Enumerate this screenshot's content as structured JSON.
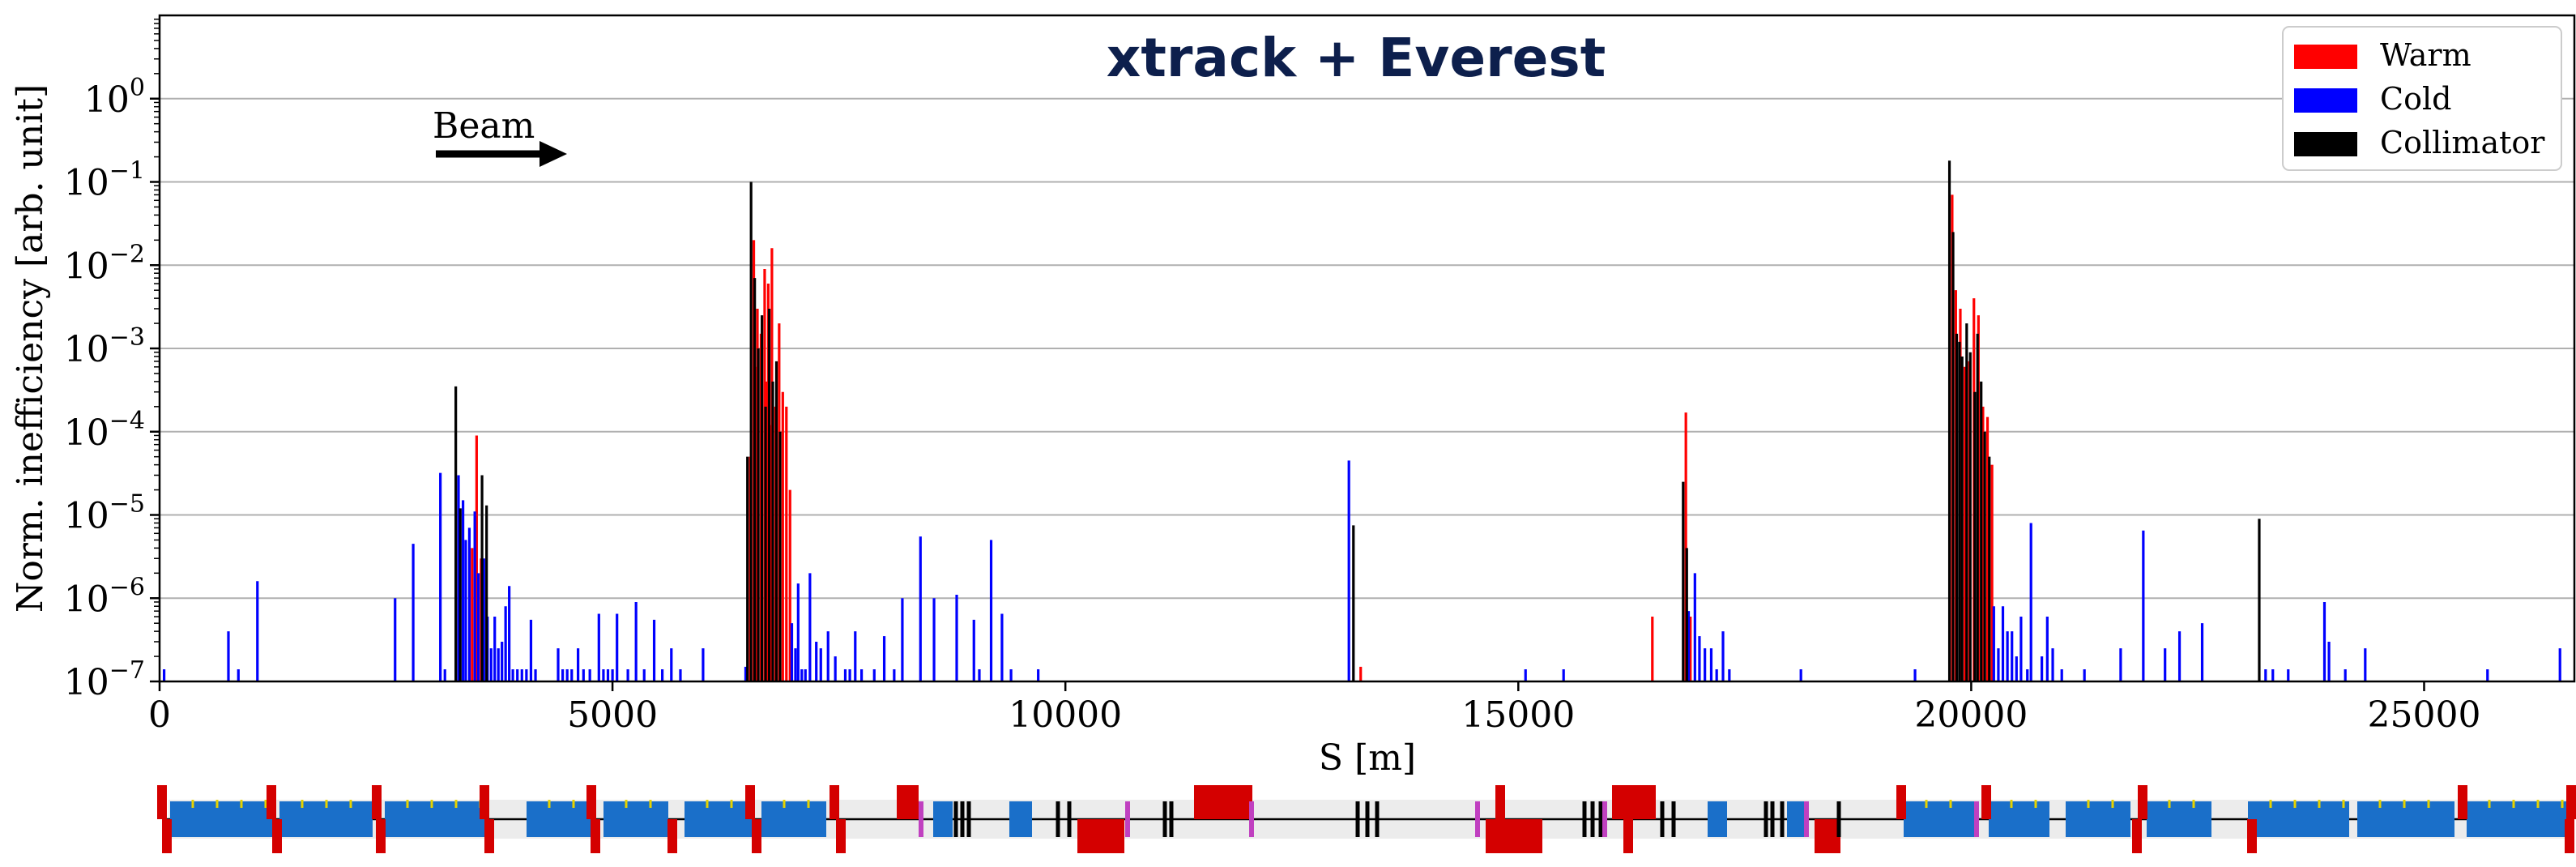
{
  "chart_data": {
    "type": "bar",
    "title": "xtrack + Everest",
    "xlabel": "S [m]",
    "ylabel": "Norm. inefficiency [arb. unit]",
    "xlim": [
      0,
      26659
    ],
    "ylim": [
      1e-07,
      10
    ],
    "yscale": "log",
    "grid": "y-major",
    "legend_position": "top-right",
    "x_ticks": [
      0,
      5000,
      10000,
      15000,
      20000,
      25000
    ],
    "x_tick_labels": [
      "0",
      "5000",
      "10000",
      "15000",
      "20000",
      "25000"
    ],
    "y_ticks": [
      {
        "value": 1,
        "base": "10",
        "exp": "0"
      },
      {
        "value": 0.1,
        "base": "10",
        "exp": "−1"
      },
      {
        "value": 0.01,
        "base": "10",
        "exp": "−2"
      },
      {
        "value": 0.001,
        "base": "10",
        "exp": "−3"
      },
      {
        "value": 0.0001,
        "base": "10",
        "exp": "−4"
      },
      {
        "value": 1e-05,
        "base": "10",
        "exp": "−5"
      },
      {
        "value": 1e-06,
        "base": "10",
        "exp": "−6"
      },
      {
        "value": 1e-07,
        "base": "10",
        "exp": "−7"
      }
    ],
    "annotation": {
      "text": "Beam",
      "direction": "right"
    },
    "series": [
      {
        "name": "Warm",
        "color": "#ff0000",
        "points": [
          [
            3500,
            9e-05
          ],
          [
            3450,
            4e-06
          ],
          [
            3550,
            3e-06
          ],
          [
            6520,
            5e-05
          ],
          [
            6560,
            0.02
          ],
          [
            6600,
            0.003
          ],
          [
            6640,
            0.0015
          ],
          [
            6680,
            0.009
          ],
          [
            6720,
            0.006
          ],
          [
            6760,
            0.016
          ],
          [
            6800,
            0.0002
          ],
          [
            6840,
            0.002
          ],
          [
            6880,
            0.0003
          ],
          [
            6920,
            0.0002
          ],
          [
            6960,
            2e-05
          ],
          [
            6580,
            0.0006
          ],
          [
            6700,
            0.0004
          ],
          [
            6740,
            0.00012
          ],
          [
            13260,
            1.5e-07
          ],
          [
            16480,
            6e-07
          ],
          [
            16850,
            0.00017
          ],
          [
            16900,
            6e-07
          ],
          [
            19790,
            0.07
          ],
          [
            19830,
            0.005
          ],
          [
            19880,
            0.003
          ],
          [
            19930,
            0.0006
          ],
          [
            19980,
            0.0007
          ],
          [
            20030,
            0.004
          ],
          [
            20080,
            0.0025
          ],
          [
            20130,
            0.0002
          ],
          [
            20180,
            0.00015
          ],
          [
            20230,
            4e-05
          ]
        ]
      },
      {
        "name": "Cold",
        "color": "#0000ff",
        "points": [
          [
            50,
            1.4e-07
          ],
          [
            760,
            4e-07
          ],
          [
            870,
            1.4e-07
          ],
          [
            1080,
            1.6e-06
          ],
          [
            2600,
            1e-06
          ],
          [
            2800,
            4.5e-06
          ],
          [
            3100,
            3.2e-05
          ],
          [
            3150,
            1.4e-07
          ],
          [
            3300,
            3e-05
          ],
          [
            3350,
            1.5e-05
          ],
          [
            3380,
            5e-06
          ],
          [
            3420,
            7e-06
          ],
          [
            3480,
            1.1e-05
          ],
          [
            3520,
            2e-06
          ],
          [
            3580,
            3e-06
          ],
          [
            3620,
            6e-07
          ],
          [
            3660,
            2.5e-07
          ],
          [
            3700,
            6e-07
          ],
          [
            3740,
            2.5e-07
          ],
          [
            3780,
            3e-07
          ],
          [
            3820,
            8e-07
          ],
          [
            3860,
            1.4e-06
          ],
          [
            3900,
            1.4e-07
          ],
          [
            3950,
            1.4e-07
          ],
          [
            4000,
            1.4e-07
          ],
          [
            4050,
            1.4e-07
          ],
          [
            4100,
            5.5e-07
          ],
          [
            4150,
            1.4e-07
          ],
          [
            4400,
            2.5e-07
          ],
          [
            4450,
            1.4e-07
          ],
          [
            4500,
            1.4e-07
          ],
          [
            4550,
            1.4e-07
          ],
          [
            4620,
            2.5e-07
          ],
          [
            4680,
            1.4e-07
          ],
          [
            4750,
            1.4e-07
          ],
          [
            4850,
            6.5e-07
          ],
          [
            4900,
            1.4e-07
          ],
          [
            4950,
            1.4e-07
          ],
          [
            5000,
            1.4e-07
          ],
          [
            5050,
            6.5e-07
          ],
          [
            5170,
            1.4e-07
          ],
          [
            5260,
            9e-07
          ],
          [
            5350,
            1.4e-07
          ],
          [
            5460,
            5.5e-07
          ],
          [
            5550,
            1.4e-07
          ],
          [
            5650,
            2.5e-07
          ],
          [
            5750,
            1.4e-07
          ],
          [
            6000,
            2.5e-07
          ],
          [
            6470,
            1.5e-07
          ],
          [
            6980,
            5e-07
          ],
          [
            7020,
            2.5e-07
          ],
          [
            7050,
            1.5e-06
          ],
          [
            7090,
            1.4e-07
          ],
          [
            7130,
            1.4e-07
          ],
          [
            7180,
            2e-06
          ],
          [
            7250,
            3e-07
          ],
          [
            7300,
            2.5e-07
          ],
          [
            7380,
            4e-07
          ],
          [
            7460,
            2e-07
          ],
          [
            7570,
            1.4e-07
          ],
          [
            7620,
            1.4e-07
          ],
          [
            7680,
            4e-07
          ],
          [
            7750,
            1.4e-07
          ],
          [
            7890,
            1.4e-07
          ],
          [
            8000,
            3.5e-07
          ],
          [
            8110,
            1.4e-07
          ],
          [
            8200,
            1e-06
          ],
          [
            8400,
            5.5e-06
          ],
          [
            8550,
            1e-06
          ],
          [
            8800,
            1.1e-06
          ],
          [
            8990,
            5.5e-07
          ],
          [
            9050,
            1.4e-07
          ],
          [
            9180,
            5e-06
          ],
          [
            9300,
            6.5e-07
          ],
          [
            9400,
            1.4e-07
          ],
          [
            9700,
            1.4e-07
          ],
          [
            13130,
            4.5e-05
          ],
          [
            15080,
            1.4e-07
          ],
          [
            15500,
            1.4e-07
          ],
          [
            16880,
            7e-07
          ],
          [
            16950,
            2e-06
          ],
          [
            17000,
            3.5e-07
          ],
          [
            17060,
            2.5e-07
          ],
          [
            17130,
            2.5e-07
          ],
          [
            17190,
            1.4e-07
          ],
          [
            17260,
            4e-07
          ],
          [
            17330,
            1.4e-07
          ],
          [
            18120,
            1.4e-07
          ],
          [
            19380,
            1.4e-07
          ],
          [
            20250,
            8e-07
          ],
          [
            20300,
            2.5e-07
          ],
          [
            20350,
            8e-07
          ],
          [
            20400,
            4e-07
          ],
          [
            20450,
            4e-07
          ],
          [
            20500,
            2e-07
          ],
          [
            20550,
            6e-07
          ],
          [
            20620,
            1.4e-07
          ],
          [
            20660,
            8e-06
          ],
          [
            20780,
            2e-07
          ],
          [
            20840,
            6e-07
          ],
          [
            20900,
            2.5e-07
          ],
          [
            21000,
            1.4e-07
          ],
          [
            21250,
            1.4e-07
          ],
          [
            21650,
            2.5e-07
          ],
          [
            21900,
            6.5e-06
          ],
          [
            22140,
            2.5e-07
          ],
          [
            22300,
            4e-07
          ],
          [
            22550,
            5e-07
          ],
          [
            23250,
            1.4e-07
          ],
          [
            23330,
            1.4e-07
          ],
          [
            23500,
            1.4e-07
          ],
          [
            23900,
            9e-07
          ],
          [
            23950,
            3e-07
          ],
          [
            24130,
            1.4e-07
          ],
          [
            24350,
            2.5e-07
          ],
          [
            25700,
            1.4e-07
          ],
          [
            26500,
            2.5e-07
          ]
        ]
      },
      {
        "name": "Collimator",
        "color": "#000000",
        "points": [
          [
            3270,
            0.00035
          ],
          [
            3320,
            1.2e-05
          ],
          [
            3560,
            3e-05
          ],
          [
            3610,
            1.3e-05
          ],
          [
            6490,
            5e-05
          ],
          [
            6530,
            0.1
          ],
          [
            6570,
            0.007
          ],
          [
            6610,
            0.001
          ],
          [
            6650,
            0.0025
          ],
          [
            6690,
            0.0002
          ],
          [
            6730,
            0.003
          ],
          [
            6770,
            0.0004
          ],
          [
            6810,
            0.0007
          ],
          [
            6850,
            0.0001
          ],
          [
            13180,
            7.5e-06
          ],
          [
            16820,
            2.5e-05
          ],
          [
            16860,
            4e-06
          ],
          [
            19760,
            0.18
          ],
          [
            19800,
            0.025
          ],
          [
            19840,
            0.0015
          ],
          [
            19870,
            0.0012
          ],
          [
            19900,
            0.0008
          ],
          [
            19950,
            0.002
          ],
          [
            19990,
            0.0009
          ],
          [
            20040,
            0.0003
          ],
          [
            20070,
            0.0015
          ],
          [
            20110,
            0.0004
          ],
          [
            20150,
            0.0001
          ],
          [
            20200,
            5e-05
          ],
          [
            23180,
            9e-06
          ]
        ]
      }
    ],
    "lattice_colors": {
      "dipole": "#1a6fc9",
      "quadrupole": "#d40000",
      "collimator": "#000000",
      "sextupole": "#c040c0",
      "marker": "#e6d200"
    }
  }
}
